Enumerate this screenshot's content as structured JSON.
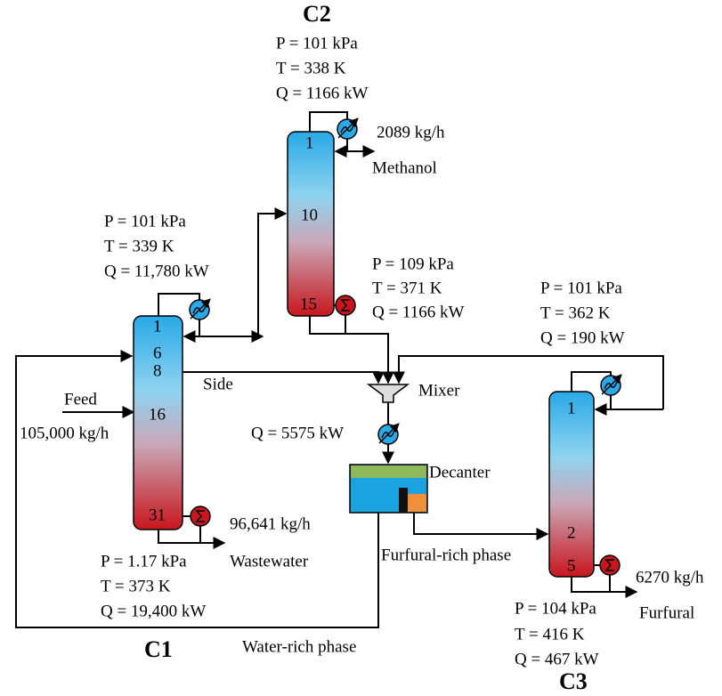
{
  "columns": [
    {
      "name": "C1",
      "stages": [
        "1",
        "6",
        "8",
        "16",
        "31"
      ],
      "top": [
        "P = 101 kPa",
        "T = 339 K",
        "Q = 11,780 kW"
      ],
      "bottom": [
        "P = 1.17 kPa",
        "T = 373 K",
        "Q = 19,400 kW"
      ]
    },
    {
      "name": "C2",
      "stages": [
        "1",
        "10",
        "15"
      ],
      "top": [
        "P = 101 kPa",
        "T = 338 K",
        "Q = 1166 kW"
      ],
      "bottom": [
        "P = 109 kPa",
        "T = 371 K",
        "Q = 1166 kW"
      ]
    },
    {
      "name": "C3",
      "stages": [
        "1",
        "2",
        "5"
      ],
      "top": [
        "P = 101 kPa",
        "T = 362 K",
        "Q = 190 kW"
      ],
      "bottom": [
        "P = 104 kPa",
        "T = 416 K",
        "Q = 467 kW"
      ]
    }
  ],
  "streams": {
    "feed": "Feed",
    "feed_rate": "105,000 kg/h",
    "side": "Side",
    "wastewater_rate": "96,641 kg/h",
    "wastewater": "Wastewater",
    "methanol_rate": "2089 kg/h",
    "methanol": "Methanol",
    "furfural_rate": "6270 kg/h",
    "furfural": "Furfural",
    "furfural_rich": "Furfural-rich phase",
    "water_rich": "Water-rich phase"
  },
  "units": {
    "mixer": "Mixer",
    "cooler_duty": "Q = 5575 kW",
    "decanter": "Decanter"
  }
}
